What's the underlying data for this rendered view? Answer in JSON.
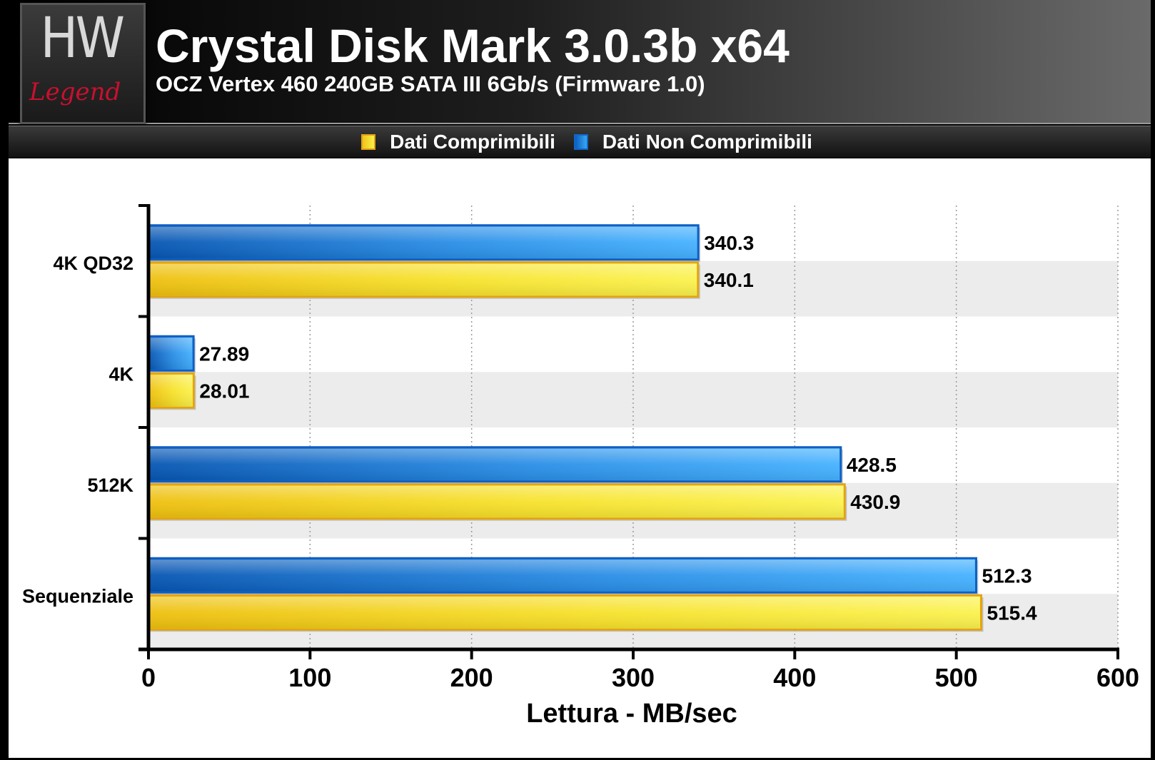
{
  "header": {
    "logo_top": "HW",
    "logo_bottom": "Legend"
  },
  "chart_data": {
    "type": "bar",
    "orientation": "horizontal",
    "title": "Crystal Disk Mark 3.0.3b x64",
    "subtitle": "OCZ Vertex 460 240GB SATA III 6Gb/s (Firmware 1.0)",
    "xlabel": "Lettura - MB/sec",
    "ylabel": "",
    "xlim": [
      0,
      600
    ],
    "xticks": [
      0,
      100,
      200,
      300,
      400,
      500,
      600
    ],
    "categories": [
      "4K QD32",
      "4K",
      "512K",
      "Sequenziale"
    ],
    "series": [
      {
        "name": "Dati Non Comprimibili",
        "color": "#1a7fe0",
        "values": [
          340.3,
          27.89,
          428.5,
          512.3
        ],
        "labels": [
          "340.3",
          "27.89",
          "428.5",
          "512.3"
        ]
      },
      {
        "name": "Dati Comprimibili",
        "color": "#f5d924",
        "values": [
          340.1,
          28.01,
          430.9,
          515.4
        ],
        "labels": [
          "340.1",
          "28.01",
          "430.9",
          "515.4"
        ]
      }
    ],
    "legend": {
      "position": "top",
      "order": [
        "Dati Comprimibili",
        "Dati Non Comprimibili"
      ]
    },
    "grid": true
  }
}
